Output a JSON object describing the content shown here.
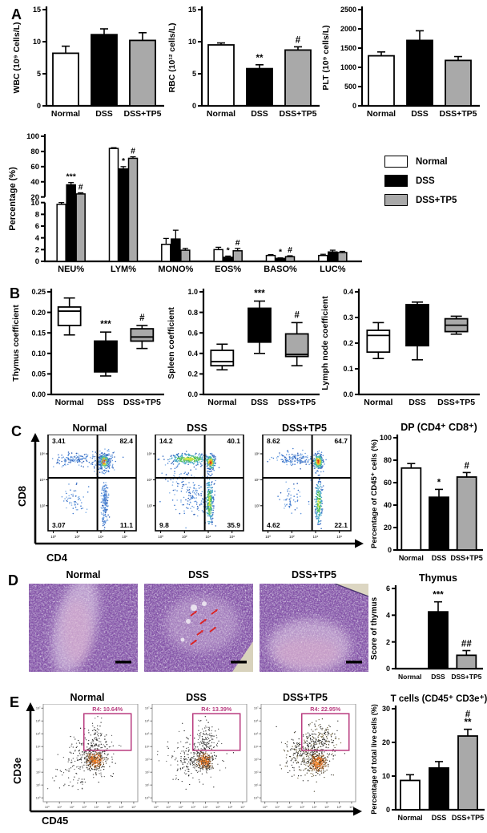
{
  "panel_labels": {
    "A": "A",
    "B": "B",
    "C": "C",
    "D": "D",
    "E": "E"
  },
  "groups": [
    "Normal",
    "DSS",
    "DSS+TP5"
  ],
  "group_colors": [
    "#FFFFFF",
    "#000000",
    "#A9A9A9"
  ],
  "legend": {
    "items": [
      {
        "label": "Normal",
        "color": "#FFFFFF"
      },
      {
        "label": "DSS",
        "color": "#000000"
      },
      {
        "label": "DSS+TP5",
        "color": "#A9A9A9"
      }
    ]
  },
  "chart_data": {
    "wbc": {
      "type": "bar",
      "title": "",
      "ylabel": "WBC (10⁹ Cells/L)",
      "ylim": [
        0,
        15
      ],
      "ytick_labels": [
        "0",
        "5",
        "10",
        "15"
      ],
      "categories": [
        "Normal",
        "DSS",
        "DSS+TP5"
      ],
      "values": [
        8.2,
        11.1,
        10.2
      ],
      "errors": [
        1.1,
        0.9,
        1.2
      ],
      "annotations": [
        "",
        "",
        ""
      ]
    },
    "rbc": {
      "type": "bar",
      "title": "",
      "ylabel": "RBC (10¹² cells/L)",
      "ylim": [
        0,
        15
      ],
      "ytick_labels": [
        "0",
        "5",
        "10",
        "15"
      ],
      "categories": [
        "Normal",
        "DSS",
        "DSS+TP5"
      ],
      "values": [
        9.5,
        5.8,
        8.7
      ],
      "errors": [
        0.3,
        0.6,
        0.5
      ],
      "annotations": [
        "",
        "**",
        "#"
      ]
    },
    "plt": {
      "type": "bar",
      "title": "",
      "ylabel": "PLT (10⁹ cells/L)",
      "ylim": [
        0,
        2500
      ],
      "ytick_labels": [
        "0",
        "500",
        "1000",
        "1500",
        "2000",
        "2500"
      ],
      "categories": [
        "Normal",
        "DSS",
        "DSS+TP5"
      ],
      "values": [
        1300,
        1700,
        1180
      ],
      "errors": [
        100,
        250,
        100
      ],
      "annotations": [
        "",
        "",
        ""
      ]
    },
    "differential": {
      "type": "bar",
      "grouped": true,
      "ylabel": "Percentage (%)",
      "categories": [
        "NEU%",
        "LYM%",
        "MONO%",
        "EOS%",
        "BASO%",
        "LUC%"
      ],
      "axis_break": {
        "lower": {
          "domain": [
            0,
            10
          ],
          "ticks": [
            "0",
            "2",
            "4",
            "6",
            "8",
            "10"
          ]
        },
        "upper": {
          "domain": [
            20,
            100
          ],
          "ticks": [
            "20",
            "40",
            "60",
            "80",
            "100"
          ]
        }
      },
      "series": [
        {
          "name": "Normal",
          "values": [
            9.7,
            84,
            2.9,
            2.0,
            1.0,
            1.0
          ],
          "errors": [
            0.3,
            1,
            1.0,
            0.4,
            0.15,
            0.2
          ],
          "annotations": [
            "",
            "",
            "",
            "",
            "",
            ""
          ]
        },
        {
          "name": "DSS",
          "values": [
            36,
            57,
            3.8,
            0.7,
            0.5,
            1.6
          ],
          "errors": [
            3,
            3,
            1.5,
            0.2,
            0.1,
            0.3
          ],
          "annotations": [
            "***",
            "*",
            "",
            "*",
            "*",
            ""
          ]
        },
        {
          "name": "DSS+TP5",
          "values": [
            24,
            71,
            1.9,
            1.8,
            0.8,
            1.5
          ],
          "errors": [
            1.5,
            2,
            0.3,
            0.4,
            0.15,
            0.2
          ],
          "annotations": [
            "#",
            "#",
            "",
            "#",
            "#",
            ""
          ]
        }
      ]
    },
    "thymus_coefficient": {
      "type": "box",
      "ylabel": "Thymus coefficient",
      "ylim": [
        0,
        0.25
      ],
      "ytick_labels": [
        "0.00",
        "0.05",
        "0.10",
        "0.15",
        "0.20",
        "0.25"
      ],
      "boxes": [
        {
          "min": 0.145,
          "q1": 0.168,
          "median": 0.203,
          "q3": 0.213,
          "max": 0.235
        },
        {
          "min": 0.045,
          "q1": 0.055,
          "median": 0.1,
          "q3": 0.13,
          "max": 0.152
        },
        {
          "min": 0.112,
          "q1": 0.13,
          "median": 0.14,
          "q3": 0.16,
          "max": 0.168
        }
      ],
      "annotations": [
        "",
        "***",
        "#"
      ]
    },
    "spleen_coefficient": {
      "type": "box",
      "ylabel": "Spleen coefficient",
      "ylim": [
        0,
        1.0
      ],
      "ytick_labels": [
        "0.0",
        "0.2",
        "0.4",
        "0.6",
        "0.8",
        "1.0"
      ],
      "boxes": [
        {
          "min": 0.24,
          "q1": 0.28,
          "median": 0.32,
          "q3": 0.43,
          "max": 0.49
        },
        {
          "min": 0.4,
          "q1": 0.51,
          "median": 0.62,
          "q3": 0.84,
          "max": 0.91
        },
        {
          "min": 0.28,
          "q1": 0.37,
          "median": 0.39,
          "q3": 0.59,
          "max": 0.7
        }
      ],
      "annotations": [
        "",
        "***",
        "#"
      ]
    },
    "lymph_node_coefficient": {
      "type": "box",
      "ylabel": "Lymph node coefficient",
      "ylim": [
        0,
        0.4
      ],
      "ytick_labels": [
        "0.0",
        "0.1",
        "0.2",
        "0.3",
        "0.4"
      ],
      "boxes": [
        {
          "min": 0.14,
          "q1": 0.165,
          "median": 0.23,
          "q3": 0.25,
          "max": 0.28
        },
        {
          "min": 0.135,
          "q1": 0.19,
          "median": 0.3,
          "q3": 0.35,
          "max": 0.36
        },
        {
          "min": 0.235,
          "q1": 0.245,
          "median": 0.27,
          "q3": 0.295,
          "max": 0.305
        }
      ],
      "annotations": [
        "",
        "",
        ""
      ]
    },
    "flow_cd4_cd8": {
      "type": "scatter",
      "xlabel": "CD4",
      "ylabel": "CD8",
      "x_tick_labels": [
        "10⁰",
        "10²",
        "10⁴",
        "10⁶"
      ],
      "y_tick_labels": [
        "10²",
        "10⁴",
        "10⁶"
      ],
      "plots": [
        {
          "title": "Normal",
          "quadrants": {
            "tl": "3.41",
            "tr": "82.4",
            "bl": "3.07",
            "br": "11.1"
          },
          "clusters": [
            {
              "cx": 0.3,
              "cy": 0.74,
              "sx": 0.1,
              "sy": 0.035,
              "n": 130,
              "pal": "blue"
            },
            {
              "cx": 0.635,
              "cy": 0.72,
              "sx": 0.03,
              "sy": 0.04,
              "n": 240,
              "pal": "heat"
            },
            {
              "cx": 0.63,
              "cy": 0.72,
              "sx": 0.07,
              "sy": 0.07,
              "n": 90,
              "pal": "blue"
            },
            {
              "cx": 0.645,
              "cy": 0.27,
              "sx": 0.018,
              "sy": 0.12,
              "n": 190,
              "pal": "blue"
            },
            {
              "cx": 0.3,
              "cy": 0.32,
              "sx": 0.08,
              "sy": 0.09,
              "n": 55,
              "pal": "blue"
            }
          ]
        },
        {
          "title": "DSS",
          "quadrants": {
            "tl": "14.2",
            "tr": "40.1",
            "bl": "9.8",
            "br": "35.9"
          },
          "clusters": [
            {
              "cx": 0.38,
              "cy": 0.745,
              "sx": 0.13,
              "sy": 0.03,
              "n": 240,
              "pal": "heatg"
            },
            {
              "cx": 0.625,
              "cy": 0.71,
              "sx": 0.028,
              "sy": 0.04,
              "n": 150,
              "pal": "heat"
            },
            {
              "cx": 0.615,
              "cy": 0.3,
              "sx": 0.022,
              "sy": 0.13,
              "n": 240,
              "pal": "heatg"
            },
            {
              "cx": 0.44,
              "cy": 0.36,
              "sx": 0.11,
              "sy": 0.1,
              "n": 130,
              "pal": "blue"
            },
            {
              "cx": 0.25,
              "cy": 0.55,
              "sx": 0.1,
              "sy": 0.12,
              "n": 60,
              "pal": "blue"
            }
          ]
        },
        {
          "title": "DSS+TP5",
          "quadrants": {
            "tl": "8.62",
            "tr": "64.7",
            "bl": "4.62",
            "br": "22.1"
          },
          "clusters": [
            {
              "cx": 0.36,
              "cy": 0.745,
              "sx": 0.11,
              "sy": 0.033,
              "n": 140,
              "pal": "blue"
            },
            {
              "cx": 0.63,
              "cy": 0.72,
              "sx": 0.028,
              "sy": 0.042,
              "n": 210,
              "pal": "heat"
            },
            {
              "cx": 0.635,
              "cy": 0.29,
              "sx": 0.02,
              "sy": 0.12,
              "n": 200,
              "pal": "heatg"
            },
            {
              "cx": 0.33,
              "cy": 0.33,
              "sx": 0.08,
              "sy": 0.08,
              "n": 55,
              "pal": "blue"
            }
          ]
        }
      ]
    },
    "dp_cells": {
      "type": "bar",
      "title": "DP (CD4⁺ CD8⁺)",
      "ylabel": "Percentage of CD45⁺ cells (%)",
      "ylim": [
        0,
        100
      ],
      "ytick_labels": [
        "0",
        "20",
        "40",
        "60",
        "80",
        "100"
      ],
      "categories": [
        "Normal",
        "DSS",
        "DSS+TP5"
      ],
      "values": [
        73,
        47,
        65
      ],
      "errors": [
        4,
        7,
        4
      ],
      "annotations": [
        "",
        "*",
        "#"
      ]
    },
    "histology": {
      "type": "image",
      "stain": "H&E",
      "titles": [
        "Normal",
        "DSS",
        "DSS+TP5"
      ],
      "dss_has_red_arrows": true,
      "scale_bar": true
    },
    "thymus_score": {
      "type": "bar",
      "title": "Thymus",
      "ylabel": "Score of thymus",
      "ylim": [
        0,
        6
      ],
      "ytick_labels": [
        "0",
        "2",
        "4",
        "6"
      ],
      "categories": [
        "Normal",
        "DSS",
        "DSS+TP5"
      ],
      "values": [
        0,
        4.25,
        1.0
      ],
      "errors": [
        0,
        0.75,
        0.35
      ],
      "annotations": [
        "",
        "***",
        "##"
      ]
    },
    "flow_cd45_cd3e": {
      "type": "scatter",
      "xlabel": "CD45",
      "ylabel": "CD3e",
      "gate_color": "#B83A7E",
      "tick_labels": [
        "10⁰",
        "10¹",
        "10²",
        "10³",
        "10⁴",
        "10⁵",
        "10⁶",
        "10⁷"
      ],
      "gate": {
        "x0": 0.43,
        "x1": 0.93,
        "y0": 0.525,
        "y1": 0.9
      },
      "plots": [
        {
          "title": "Normal",
          "gate_label": "R4: 10.64%",
          "clusters": [
            {
              "cx": 0.55,
              "cy": 0.43,
              "sx": 0.045,
              "sy": 0.045,
              "n": 260,
              "pal": "orange"
            },
            {
              "cx": 0.52,
              "cy": 0.46,
              "sx": 0.11,
              "sy": 0.11,
              "n": 220,
              "pal": "dark"
            },
            {
              "cx": 0.57,
              "cy": 0.64,
              "sx": 0.055,
              "sy": 0.075,
              "n": 80,
              "pal": "dark"
            },
            {
              "cx": 0.35,
              "cy": 0.3,
              "sx": 0.14,
              "sy": 0.12,
              "n": 60,
              "pal": "dark"
            }
          ]
        },
        {
          "title": "DSS",
          "gate_label": "R4: 13.39%",
          "clusters": [
            {
              "cx": 0.55,
              "cy": 0.42,
              "sx": 0.04,
              "sy": 0.04,
              "n": 240,
              "pal": "orange"
            },
            {
              "cx": 0.5,
              "cy": 0.45,
              "sx": 0.12,
              "sy": 0.11,
              "n": 220,
              "pal": "dark"
            },
            {
              "cx": 0.56,
              "cy": 0.65,
              "sx": 0.06,
              "sy": 0.08,
              "n": 100,
              "pal": "dark"
            },
            {
              "cx": 0.3,
              "cy": 0.4,
              "sx": 0.1,
              "sy": 0.1,
              "n": 60,
              "pal": "dark"
            }
          ]
        },
        {
          "title": "DSS+TP5",
          "gate_label": "R4: 22.95%",
          "clusters": [
            {
              "cx": 0.6,
              "cy": 0.4,
              "sx": 0.045,
              "sy": 0.045,
              "n": 280,
              "pal": "orange"
            },
            {
              "cx": 0.52,
              "cy": 0.47,
              "sx": 0.13,
              "sy": 0.12,
              "n": 260,
              "pal": "darkol"
            },
            {
              "cx": 0.63,
              "cy": 0.64,
              "sx": 0.08,
              "sy": 0.085,
              "n": 150,
              "pal": "darkol"
            },
            {
              "cx": 0.42,
              "cy": 0.52,
              "sx": 0.09,
              "sy": 0.07,
              "n": 80,
              "pal": "darkol"
            }
          ]
        }
      ]
    },
    "t_cells": {
      "type": "bar",
      "title": "T cells (CD45⁺ CD3e⁺)",
      "ylabel": "Percentage of total live cells (%)",
      "ylim": [
        0,
        30
      ],
      "ytick_labels": [
        "0",
        "10",
        "20",
        "30"
      ],
      "categories": [
        "Normal",
        "DSS",
        "DSS+TP5"
      ],
      "values": [
        8.7,
        12.4,
        21.9
      ],
      "errors": [
        1.7,
        1.9,
        2.0
      ],
      "annotations": [
        "",
        "",
        [
          "#",
          "**"
        ]
      ]
    }
  }
}
